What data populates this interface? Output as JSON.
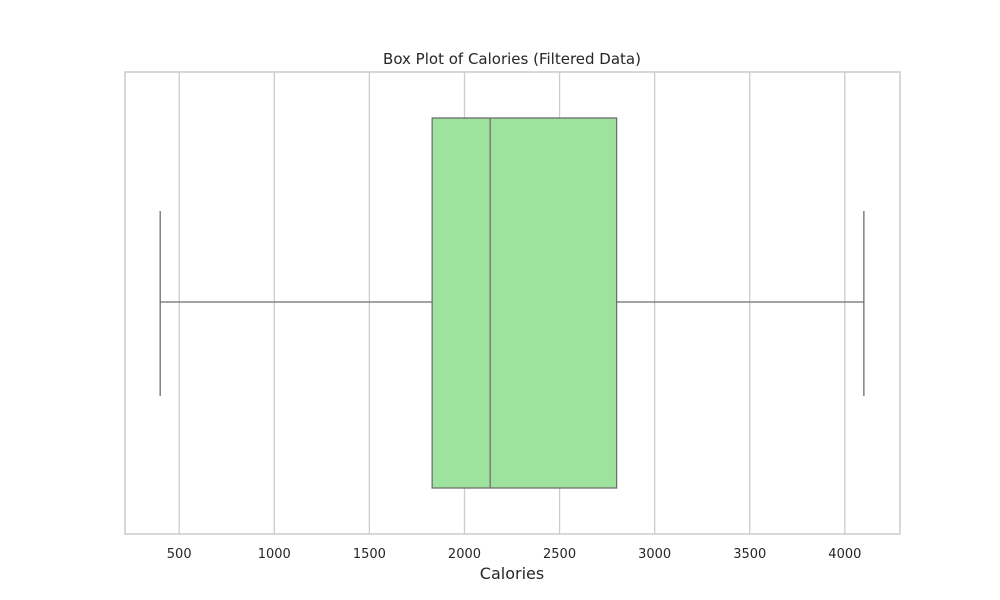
{
  "chart_data": {
    "type": "box",
    "title": "Box Plot of Calories (Filtered Data)",
    "xlabel": "Calories",
    "ylabel": "",
    "orientation": "horizontal",
    "xlim": [
      215,
      4290
    ],
    "xticks": [
      500,
      1000,
      1500,
      2000,
      2500,
      3000,
      3500,
      4000
    ],
    "xtick_labels": [
      "500",
      "1000",
      "1500",
      "2000",
      "2500",
      "3000",
      "3500",
      "4000"
    ],
    "grid": true,
    "box": {
      "min": 400,
      "q1": 1830,
      "median": 2135,
      "q3": 2800,
      "max": 4100
    },
    "colors": {
      "box_fill": "#9de39d",
      "line": "#6e6e6e",
      "grid": "#cccccc",
      "frame": "#cccccc"
    }
  }
}
